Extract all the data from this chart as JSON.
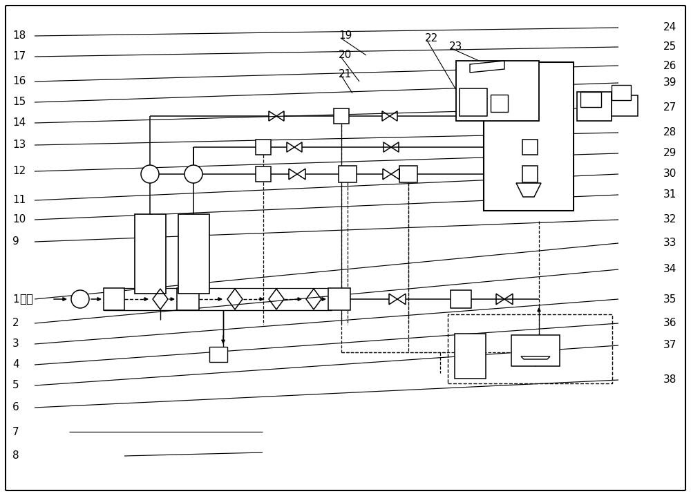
{
  "bg_color": "#ffffff",
  "fig_width": 10.0,
  "fig_height": 7.18,
  "dpi": 100,
  "left_labels": [
    18,
    17,
    16,
    15,
    14,
    13,
    12,
    11,
    10,
    9,
    1,
    2,
    3,
    4,
    5,
    6,
    7,
    8
  ],
  "left_iy": [
    52,
    82,
    118,
    148,
    178,
    210,
    248,
    290,
    318,
    350,
    433,
    468,
    498,
    528,
    558,
    590,
    625,
    660
  ],
  "right_labels": [
    24,
    25,
    26,
    39,
    27,
    28,
    29,
    30,
    31,
    32,
    33,
    34,
    35,
    36,
    37,
    38
  ],
  "right_iy": [
    40,
    68,
    95,
    120,
    155,
    192,
    222,
    252,
    282,
    318,
    352,
    390,
    433,
    468,
    500,
    550
  ],
  "top_labels": [
    19,
    20,
    21,
    22,
    23
  ],
  "top_ix": [
    490,
    490,
    490,
    615,
    650
  ],
  "top_iy": [
    52,
    80,
    108,
    55,
    68
  ]
}
